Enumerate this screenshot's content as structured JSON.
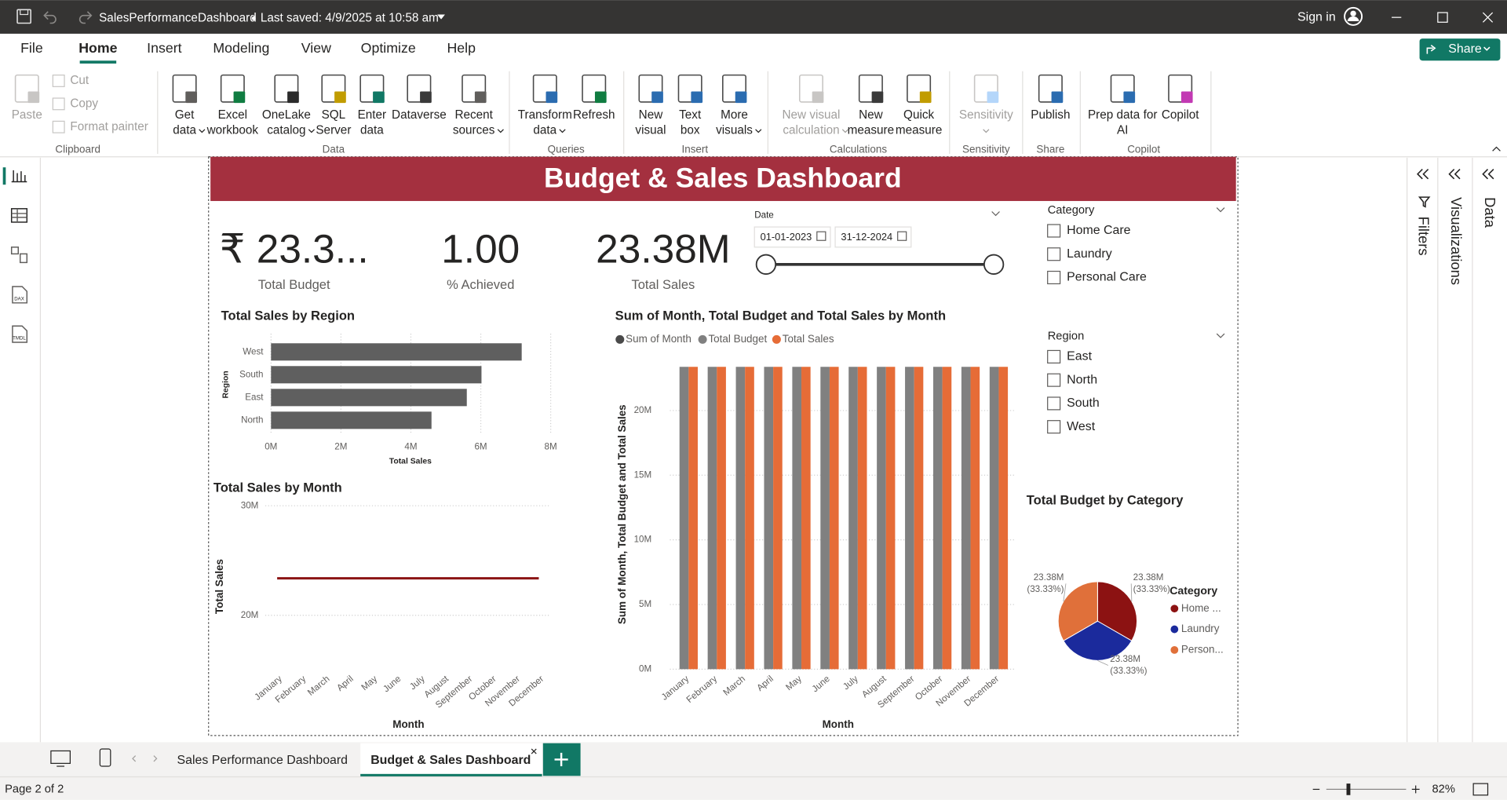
{
  "title_bar": {
    "file_name": "SalesPerformanceDashboard",
    "last_saved": "Last saved: 4/9/2025 at 10:58 am",
    "sign_in": "Sign in"
  },
  "menu": {
    "items": [
      "File",
      "Home",
      "Insert",
      "Modeling",
      "View",
      "Optimize",
      "Help"
    ],
    "active": 1,
    "share": "Share"
  },
  "ribbon": [
    {
      "name": "Clipboard",
      "buttons": [
        {
          "label": [
            "Paste"
          ],
          "disabled": true
        },
        {
          "label": [
            "Cut"
          ],
          "disabled": true
        },
        {
          "label": [
            "Copy"
          ],
          "disabled": true
        },
        {
          "label": [
            "Format painter"
          ],
          "disabled": true
        }
      ]
    },
    {
      "name": "Data",
      "buttons": [
        {
          "label": [
            "Get",
            "data"
          ],
          "dropdown": true
        },
        {
          "label": [
            "Excel",
            "workbook"
          ]
        },
        {
          "label": [
            "OneLake",
            "catalog"
          ],
          "dropdown": true
        },
        {
          "label": [
            "SQL",
            "Server"
          ]
        },
        {
          "label": [
            "Enter",
            "data"
          ]
        },
        {
          "label": [
            "Dataverse"
          ]
        },
        {
          "label": [
            "Recent",
            "sources"
          ],
          "dropdown": true
        }
      ]
    },
    {
      "name": "Queries",
      "buttons": [
        {
          "label": [
            "Transform",
            "data"
          ],
          "dropdown": true
        },
        {
          "label": [
            "Refresh"
          ]
        }
      ]
    },
    {
      "name": "Insert",
      "buttons": [
        {
          "label": [
            "New",
            "visual"
          ]
        },
        {
          "label": [
            "Text",
            "box"
          ]
        },
        {
          "label": [
            "More",
            "visuals"
          ],
          "dropdown": true
        }
      ]
    },
    {
      "name": "Calculations",
      "buttons": [
        {
          "label": [
            "New visual",
            "calculation"
          ],
          "dropdown": true,
          "disabled": true
        },
        {
          "label": [
            "New",
            "measure"
          ]
        },
        {
          "label": [
            "Quick",
            "measure"
          ]
        }
      ]
    },
    {
      "name": "Sensitivity",
      "buttons": [
        {
          "label": [
            "Sensitivity"
          ],
          "dropdown": true,
          "disabled": true
        }
      ]
    },
    {
      "name": "Share",
      "buttons": [
        {
          "label": [
            "Publish"
          ]
        }
      ]
    },
    {
      "name": "Copilot",
      "buttons": [
        {
          "label": [
            "Prep data for",
            "AI"
          ]
        },
        {
          "label": [
            "Copilot"
          ]
        }
      ]
    }
  ],
  "sidebar": [
    "DAX",
    "TMDL"
  ],
  "panes": [
    "Filters",
    "Visualizations",
    "Data"
  ],
  "report": {
    "title": "Budget & Sales Dashboard",
    "cards": [
      {
        "value": "₹ 23.3...",
        "label": "Total Budget"
      },
      {
        "value": "1.00",
        "label": "% Achieved"
      },
      {
        "value": "23.38M",
        "label": "Total Sales"
      }
    ],
    "date_slicer": {
      "title": "Date",
      "start": "01-01-2023",
      "end": "31-12-2024"
    },
    "category_slicer": {
      "title": "Category",
      "items": [
        "Home Care",
        "Laundry",
        "Personal Care"
      ]
    },
    "region_slicer": {
      "title": "Region",
      "items": [
        "East",
        "North",
        "South",
        "West"
      ]
    },
    "charts": [
      {
        "type": "bar",
        "title": "Total Sales by Region",
        "categories": [
          "West",
          "South",
          "East",
          "North"
        ],
        "values": [
          7170000,
          6020000,
          5600000,
          4590000
        ],
        "color": "#5f5f5f",
        "xlim": [
          0,
          8000000
        ],
        "xticks": [
          {
            "value": 0,
            "label": "0M"
          },
          {
            "value": 2000000,
            "label": "2M"
          },
          {
            "value": 4000000,
            "label": "4M"
          },
          {
            "value": 6000000,
            "label": "6M"
          },
          {
            "value": 8000000,
            "label": "8M"
          }
        ],
        "x_label": "Total Sales",
        "y_label": "Region",
        "grid": true
      },
      {
        "type": "line",
        "title": "Total Sales by Month",
        "categories": [
          "January",
          "February",
          "March",
          "April",
          "May",
          "June",
          "July",
          "August",
          "September",
          "October",
          "November",
          "December"
        ],
        "values": [
          23380000,
          23380000,
          23380000,
          23380000,
          23380000,
          23380000,
          23380000,
          23380000,
          23380000,
          23380000,
          23380000,
          23380000
        ],
        "color": "#8b1414",
        "ylim": [
          15000000,
          30000000
        ],
        "yticks": [
          {
            "value": 20000000,
            "label": "20M"
          },
          {
            "value": 30000000,
            "label": "30M"
          }
        ],
        "x_label": "Month",
        "y_label": "Total Sales",
        "grid": true
      },
      {
        "type": "column",
        "title": "Sum of Month, Total Budget and Total Sales by Month",
        "categories": [
          "January",
          "February",
          "March",
          "April",
          "May",
          "June",
          "July",
          "August",
          "September",
          "October",
          "November",
          "December"
        ],
        "series": [
          {
            "name": "Sum of Month",
            "color": "#4a4a4a",
            "values": [
              0,
              0,
              0,
              0,
              0,
              0,
              0,
              0,
              0,
              0,
              0,
              0
            ]
          },
          {
            "name": "Total Budget",
            "color": "#808080",
            "values": [
              23380000,
              23380000,
              23380000,
              23380000,
              23380000,
              23380000,
              23380000,
              23380000,
              23380000,
              23380000,
              23380000,
              23380000
            ]
          },
          {
            "name": "Total Sales",
            "color": "#e66c37",
            "values": [
              23380000,
              23380000,
              23380000,
              23380000,
              23380000,
              23380000,
              23380000,
              23380000,
              23380000,
              23380000,
              23380000,
              23380000
            ]
          }
        ],
        "ylim": [
          0,
          23380000
        ],
        "yticks": [
          {
            "value": 0,
            "label": "0M"
          },
          {
            "value": 5000000,
            "label": "5M"
          },
          {
            "value": 10000000,
            "label": "10M"
          },
          {
            "value": 15000000,
            "label": "15M"
          },
          {
            "value": 20000000,
            "label": "20M"
          }
        ],
        "x_label": "Month",
        "y_label": "Sum of Month, Total Budget and Total Sales",
        "grid": true
      },
      {
        "type": "pie",
        "title": "Total Budget by Category",
        "categories": [
          "Home ...",
          "Laundry",
          "Person..."
        ],
        "values": [
          23380000,
          23380000,
          23380000
        ],
        "value_labels": [
          "23.38M",
          "23.38M",
          "23.38M"
        ],
        "percent_labels": [
          "(33.33%)",
          "(33.33%)",
          "(33.33%)"
        ],
        "colors": [
          "#8c1212",
          "#1b2a9c",
          "#e0703a"
        ],
        "legend_title": "Category"
      }
    ]
  },
  "page_tabs": {
    "tabs": [
      "Sales Performance Dashboard",
      "Budget & Sales Dashboard"
    ],
    "active": 1
  },
  "status_bar": {
    "page": "Page 2 of 2",
    "zoom": "82%"
  }
}
